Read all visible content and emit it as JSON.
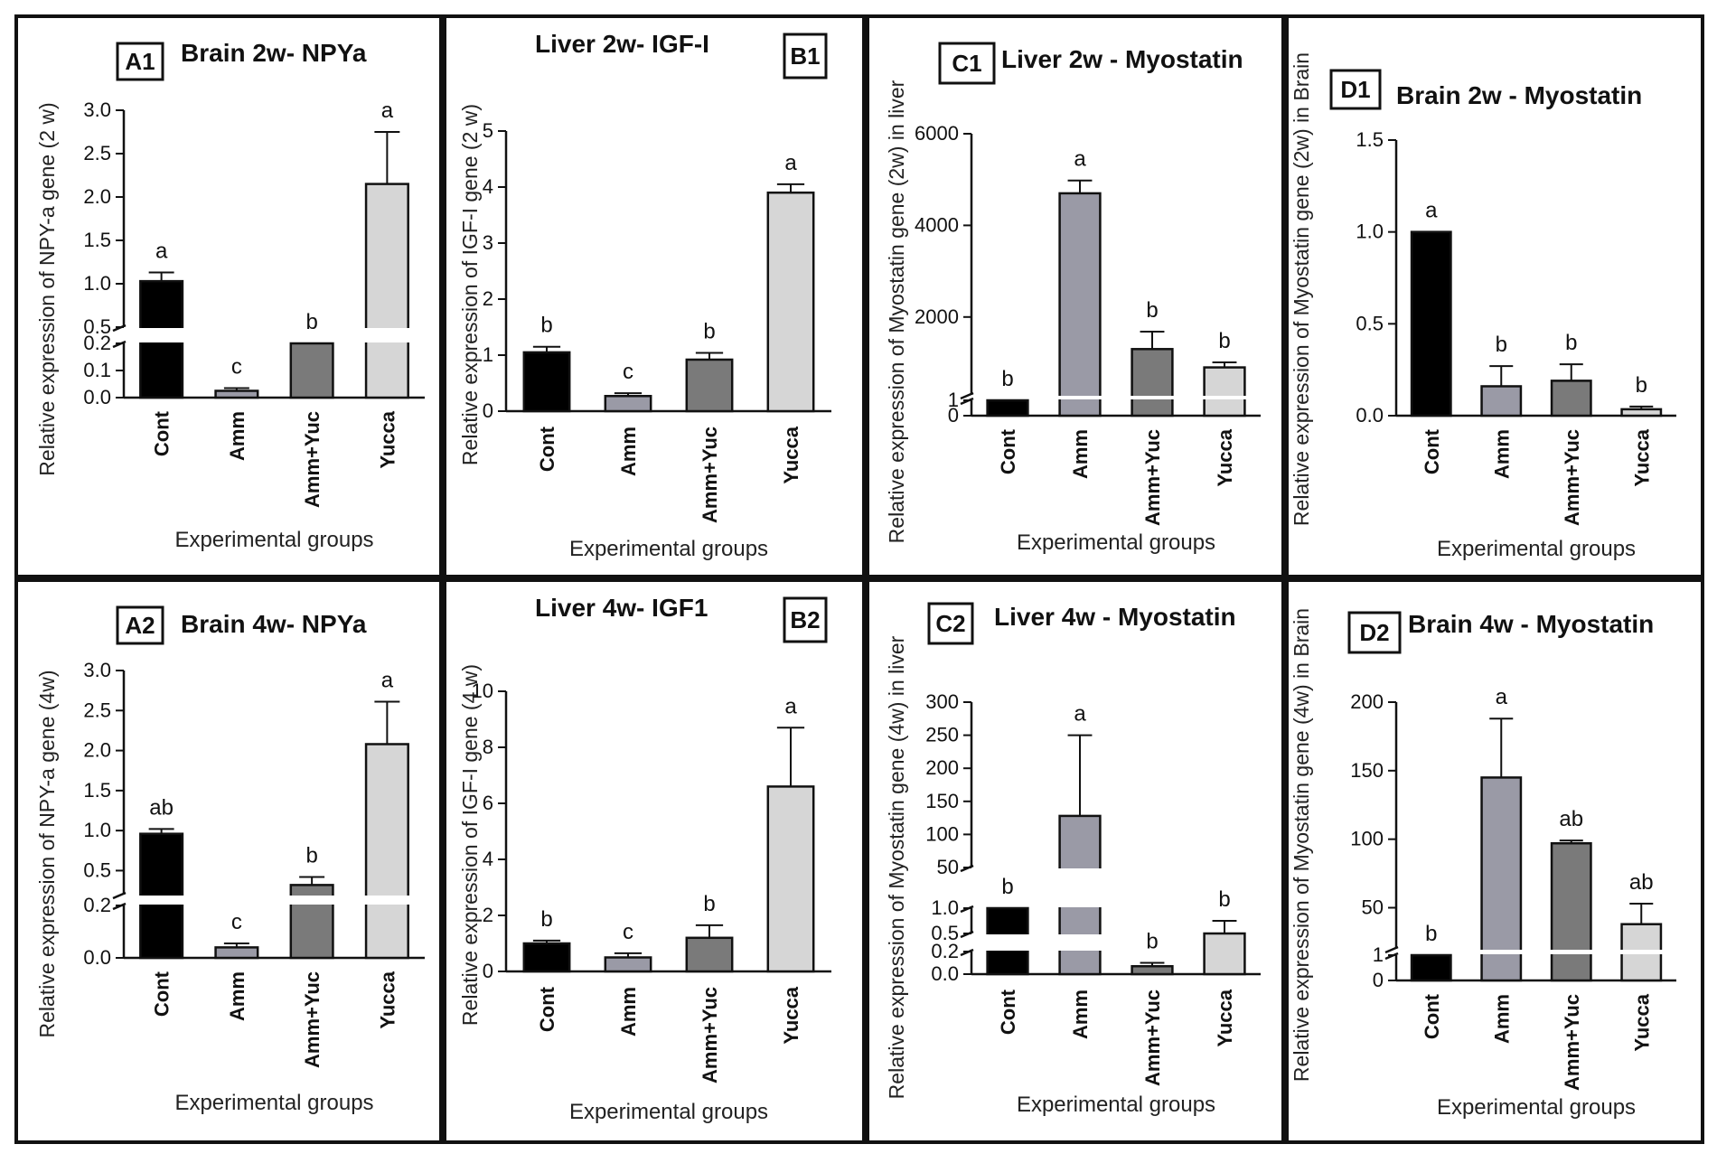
{
  "figure": {
    "categories": [
      "Cont",
      "Amm",
      "Amm+Yuc",
      "Yucca"
    ],
    "xlabel": "Experimental groups",
    "colors": {
      "Cont": "#000000",
      "Amm": "#9a9aa6",
      "Amm+Yuc": "#7a7a7a",
      "Yucca": "#d6d6d6"
    }
  },
  "chart_data": [
    {
      "id": "A1",
      "type": "bar",
      "title": "Brain 2w- NPYa",
      "ylabel": "Relative expression of NPY-a gene (2 w)",
      "xlabel": "Experimental groups",
      "categories": [
        "Cont",
        "Amm",
        "Amm+Yuc",
        "Yucca"
      ],
      "values": [
        1.03,
        0.025,
        0.2,
        2.15
      ],
      "errors": [
        0.1,
        0.01,
        0,
        0.6
      ],
      "letters": [
        "a",
        "c",
        "b",
        "a"
      ],
      "axis_break": {
        "lower": [
          0,
          0.2
        ],
        "upper": [
          0.5,
          3.0
        ]
      },
      "ticks_lower": [
        0.0,
        0.1,
        0.2
      ],
      "ticks_upper": [
        0.5,
        1.0,
        1.5,
        2.0,
        2.5,
        3.0
      ],
      "tick_labels_lower": [
        "0.0",
        "0.1",
        "0.2"
      ],
      "tick_labels_upper": [
        "0.5",
        "1.0",
        "1.5",
        "2.0",
        "2.5",
        "3.0"
      ]
    },
    {
      "id": "B1",
      "type": "bar",
      "title": "Liver 2w- IGF-I",
      "ylabel": "Relative expression of IGF-I gene (2 w)",
      "xlabel": "Experimental groups",
      "categories": [
        "Cont",
        "Amm",
        "Amm+Yuc",
        "Yucca"
      ],
      "values": [
        1.05,
        0.27,
        0.92,
        3.9
      ],
      "errors": [
        0.1,
        0.05,
        0.12,
        0.15
      ],
      "letters": [
        "b",
        "c",
        "b",
        "a"
      ],
      "ylim": [
        0,
        5
      ],
      "ticks": [
        0,
        1,
        2,
        3,
        4,
        5
      ],
      "tick_labels": [
        "0",
        "1",
        "2",
        "3",
        "4",
        "5"
      ]
    },
    {
      "id": "C1",
      "type": "bar",
      "title": "Liver 2w - Myostatin",
      "ylabel": "Relative expression of Myostatin gene (2w) in liver",
      "xlabel": "Experimental groups",
      "categories": [
        "Cont",
        "Amm",
        "Amm+Yuc",
        "Yucca"
      ],
      "values": [
        1,
        4700,
        1300,
        900
      ],
      "errors": [
        0,
        280,
        380,
        110
      ],
      "letters": [
        "b",
        "a",
        "b",
        "b"
      ],
      "axis_break": {
        "lower": [
          0,
          1
        ],
        "upper": [
          300,
          6000
        ]
      },
      "ticks_lower": [
        0,
        1
      ],
      "ticks_upper": [
        2000,
        4000,
        6000
      ],
      "tick_labels_lower": [
        "0",
        "1"
      ],
      "tick_labels_upper": [
        "2000",
        "4000",
        "6000"
      ]
    },
    {
      "id": "D1",
      "type": "bar",
      "title": "Brain 2w - Myostatin",
      "ylabel": "Relative expression of Myostatin gene (2w) in Brain",
      "xlabel": "Experimental groups",
      "categories": [
        "Cont",
        "Amm",
        "Amm+Yuc",
        "Yucca"
      ],
      "values": [
        1.0,
        0.16,
        0.19,
        0.035
      ],
      "errors": [
        0,
        0.11,
        0.09,
        0.015
      ],
      "letters": [
        "a",
        "b",
        "b",
        "b"
      ],
      "ylim": [
        0,
        1.5
      ],
      "ticks": [
        0,
        0.5,
        1.0,
        1.5
      ],
      "tick_labels": [
        "0.0",
        "0.5",
        "1.0",
        "1.5"
      ]
    },
    {
      "id": "A2",
      "type": "bar",
      "title": "Brain 4w- NPYa",
      "ylabel": "Relative expression of NPY-a gene (4w)",
      "xlabel": "Experimental groups",
      "categories": [
        "Cont",
        "Amm",
        "Amm+Yuc",
        "Yucca"
      ],
      "values": [
        0.96,
        0.04,
        0.32,
        2.08
      ],
      "errors": [
        0.06,
        0.015,
        0.1,
        0.53
      ],
      "letters": [
        "ab",
        "c",
        "b",
        "a"
      ],
      "axis_break": {
        "lower": [
          0,
          0.2
        ],
        "upper": [
          0.2,
          3.0
        ]
      },
      "ticks_lower": [
        0.0,
        0.2
      ],
      "ticks_upper": [
        0.2,
        0.5,
        1.0,
        1.5,
        2.0,
        2.5,
        3.0
      ],
      "tick_labels_lower": [
        "0.0",
        "0.2"
      ],
      "tick_labels_upper": [
        "",
        "0.5",
        "1.0",
        "1.5",
        "2.0",
        "2.5",
        "3.0"
      ]
    },
    {
      "id": "B2",
      "type": "bar",
      "title": "Liver 4w- IGF1",
      "ylabel": "Relative expression of IGF-I gene (4 w)",
      "xlabel": "Experimental groups",
      "categories": [
        "Cont",
        "Amm",
        "Amm+Yuc",
        "Yucca"
      ],
      "values": [
        1.0,
        0.5,
        1.2,
        6.6
      ],
      "errors": [
        0.1,
        0.15,
        0.45,
        2.1
      ],
      "letters": [
        "b",
        "c",
        "b",
        "a"
      ],
      "ylim": [
        0,
        10
      ],
      "ticks": [
        0,
        2,
        4,
        6,
        8,
        10
      ],
      "tick_labels": [
        "0",
        "2",
        "4",
        "6",
        "8",
        "10"
      ]
    },
    {
      "id": "C2",
      "type": "bar",
      "title": "Liver 4w - Myostatin",
      "ylabel": "Relative expression of Myostatin gene (4w) in liver",
      "xlabel": "Experimental groups",
      "categories": [
        "Cont",
        "Amm",
        "Amm+Yuc",
        "Yucca"
      ],
      "values": [
        1.0,
        128,
        0.07,
        0.5
      ],
      "errors": [
        0,
        122,
        0.03,
        0.25
      ],
      "letters": [
        "b",
        "a",
        "b",
        "b"
      ],
      "axis_break": {
        "lower": [
          0,
          0.2
        ],
        "mid": [
          0.5,
          1.0
        ],
        "upper": [
          50,
          300
        ]
      },
      "ticks_lower": [
        0.0,
        0.2
      ],
      "ticks_mid": [
        0.5,
        1.0
      ],
      "ticks_upper": [
        50,
        100,
        150,
        200,
        250,
        300
      ],
      "tick_labels_lower": [
        "0.0",
        "0.2"
      ],
      "tick_labels_mid": [
        "0.5",
        "1.0"
      ],
      "tick_labels_upper": [
        "50",
        "100",
        "150",
        "200",
        "250",
        "300"
      ]
    },
    {
      "id": "D2",
      "type": "bar",
      "title": "Brain 4w - Myostatin",
      "ylabel": "Relative expression of Myostatin gene (4w) in Brain",
      "xlabel": "Experimental groups",
      "categories": [
        "Cont",
        "Amm",
        "Amm+Yuc",
        "Yucca"
      ],
      "values": [
        1,
        145,
        97,
        38
      ],
      "errors": [
        0,
        43,
        2,
        15
      ],
      "letters": [
        "b",
        "a",
        "ab",
        "ab"
      ],
      "axis_break": {
        "lower": [
          0,
          1
        ],
        "upper": [
          20,
          200
        ]
      },
      "ticks_lower": [
        0,
        1
      ],
      "ticks_upper": [
        50,
        100,
        150,
        200
      ],
      "tick_labels_lower": [
        "0",
        "1"
      ],
      "tick_labels_upper": [
        "50",
        "100",
        "150",
        "200"
      ]
    }
  ]
}
